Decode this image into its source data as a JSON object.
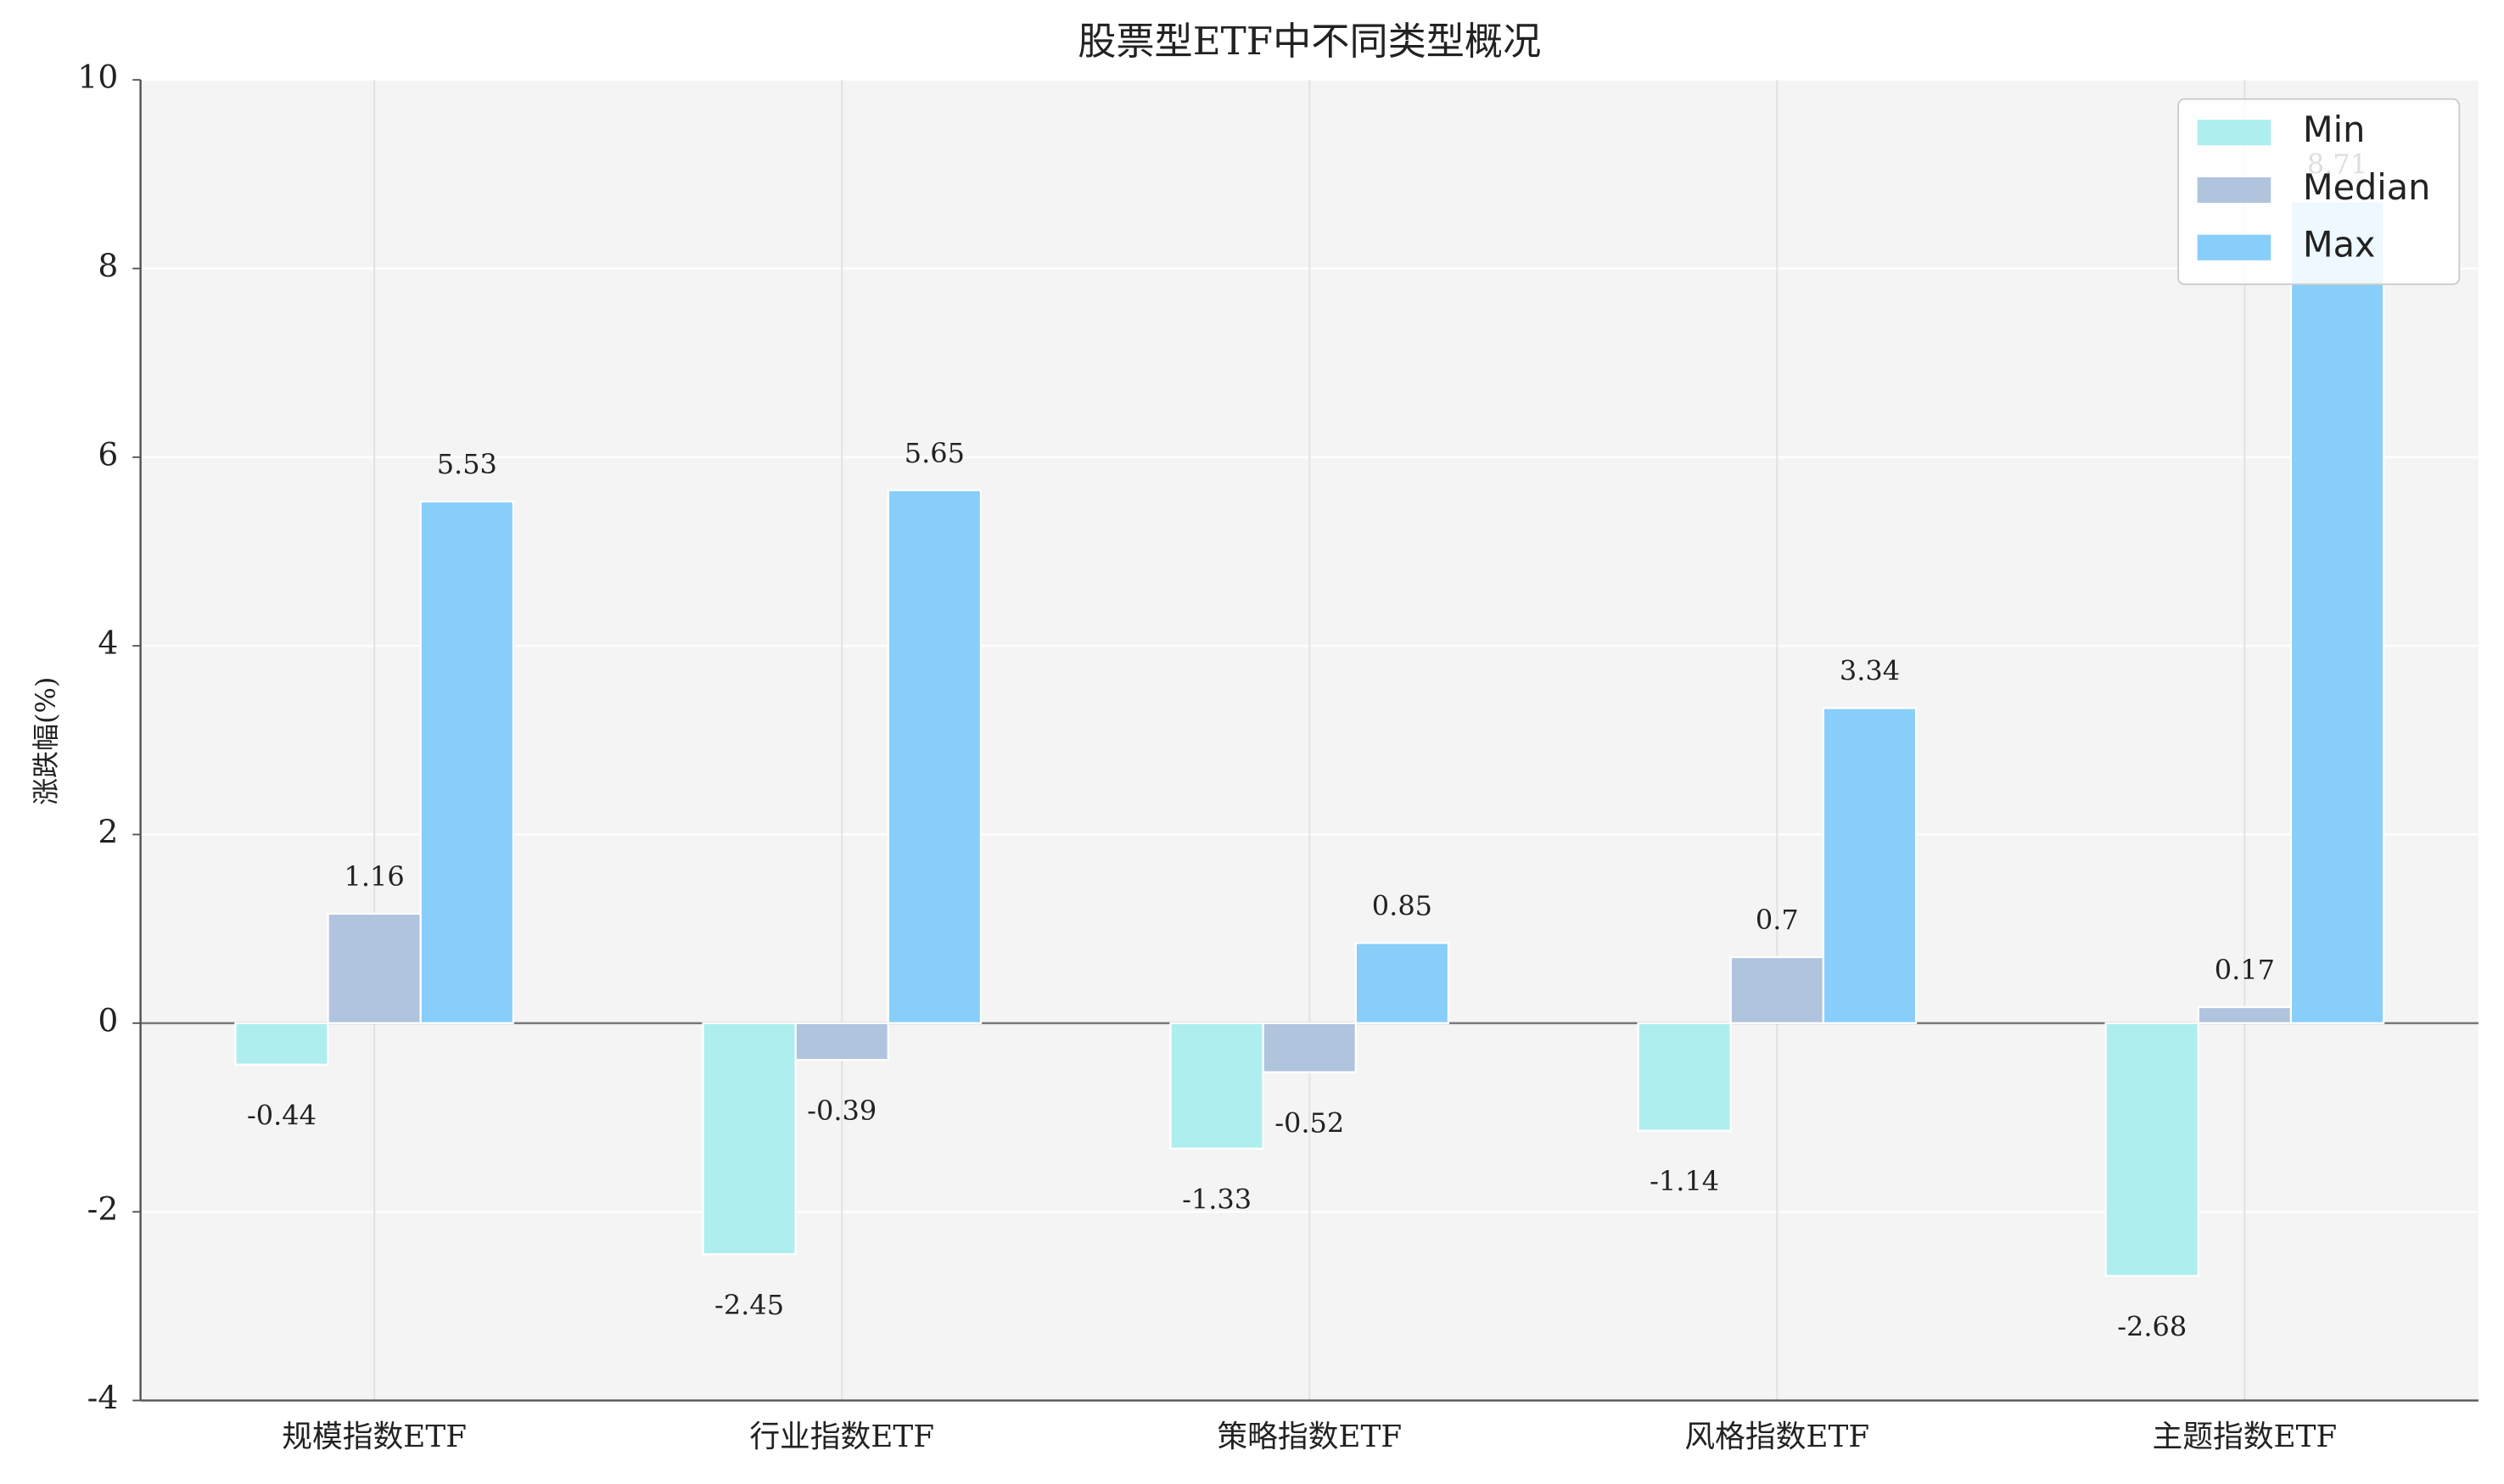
{
  "chart_data": {
    "type": "bar",
    "title": "股票型ETF中不同类型概况",
    "y_label": "涨跌幅(%)",
    "categories": [
      "规模指数ETF",
      "行业指数ETF",
      "策略指数ETF",
      "风格指数ETF",
      "主题指数ETF"
    ],
    "series": [
      {
        "name": "Min",
        "color": "#afeeee",
        "values": [
          -0.44,
          -2.45,
          -1.33,
          -1.14,
          -2.68
        ]
      },
      {
        "name": "Median",
        "color": "#b0c4de",
        "values": [
          1.16,
          -0.39,
          -0.52,
          0.7,
          0.17
        ]
      },
      {
        "name": "Max",
        "color": "#87cefa",
        "values": [
          5.53,
          5.65,
          0.85,
          3.34,
          8.71
        ]
      }
    ],
    "ylim": [
      -4,
      10
    ],
    "yticks": [
      -4,
      -2,
      0,
      2,
      4,
      6,
      8,
      10
    ],
    "grid": true,
    "legend": "upper right"
  }
}
